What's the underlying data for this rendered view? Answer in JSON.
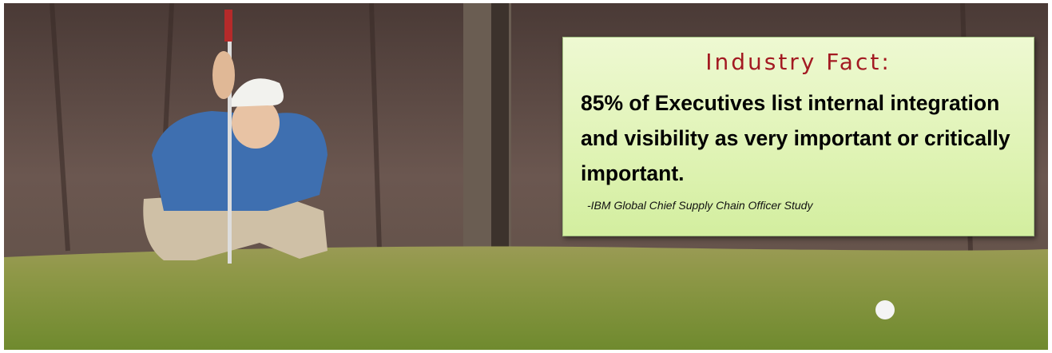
{
  "callout": {
    "heading": "Industry Fact:",
    "body": "85% of Executives list internal integration and visibility as very important or critically important.",
    "source": "-IBM Global Chief Supply Chain Officer Study"
  }
}
